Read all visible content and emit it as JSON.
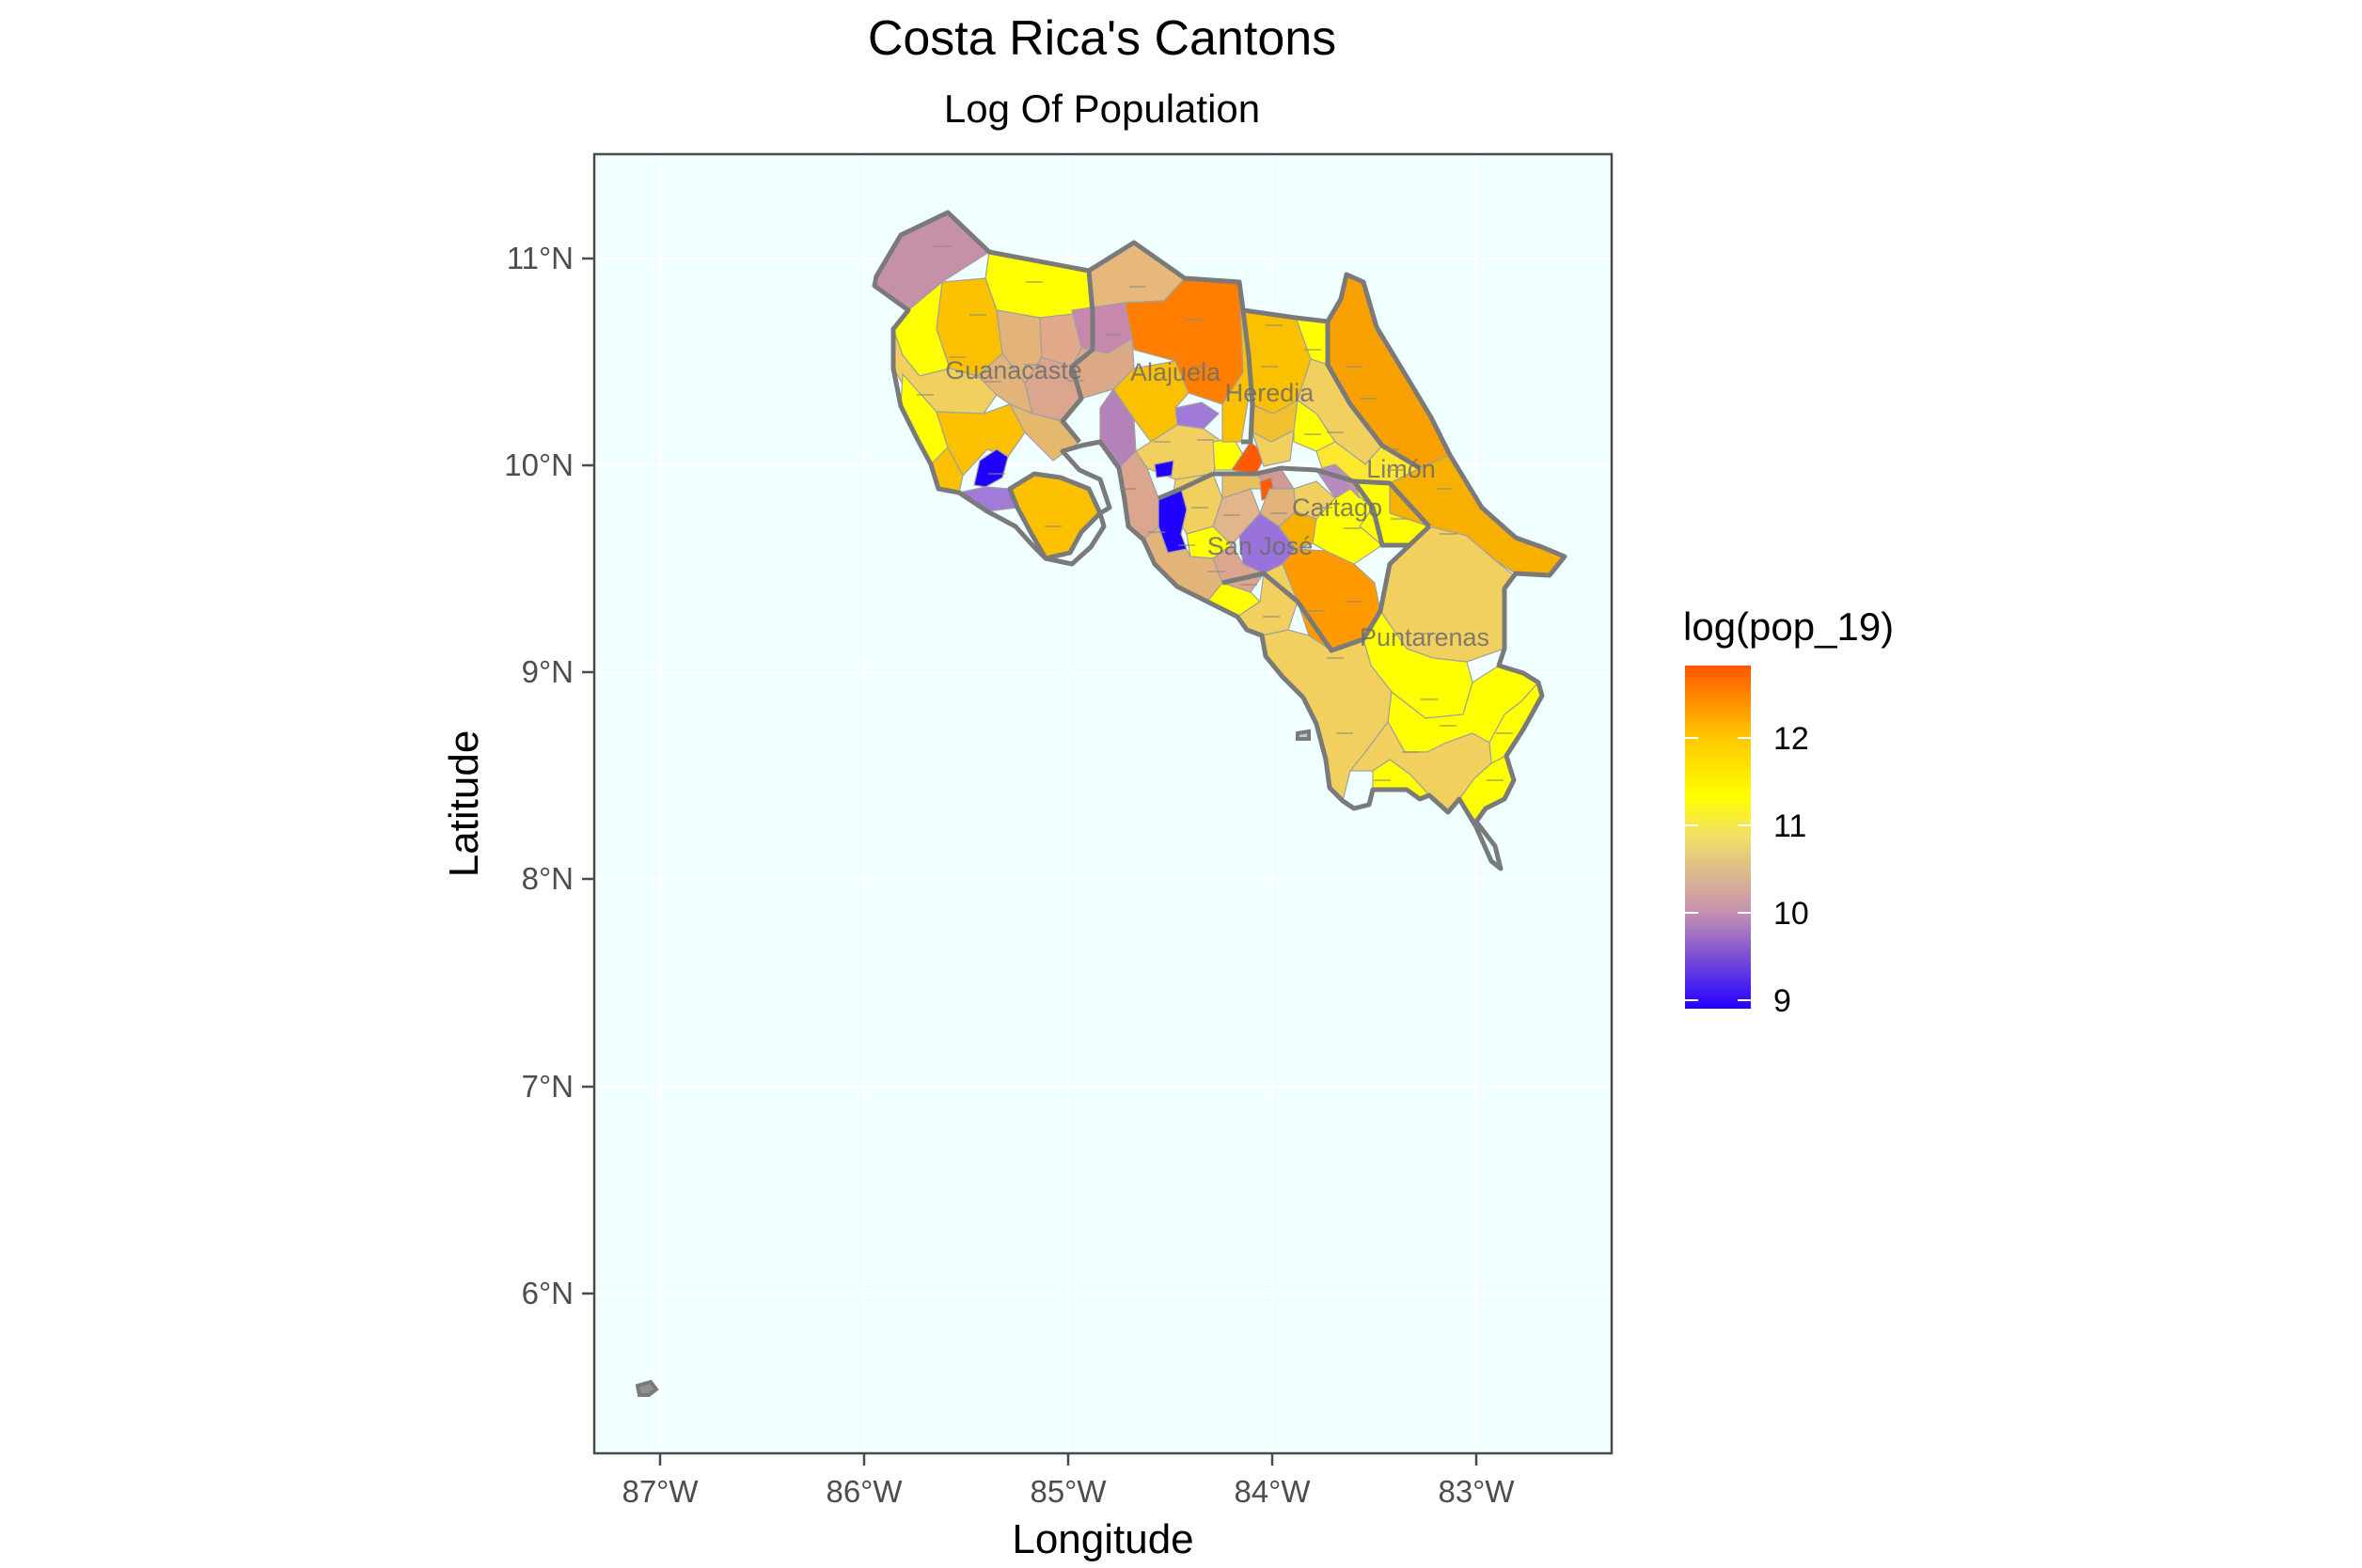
{
  "title": "Costa Rica's Cantons",
  "subtitle": "Log Of Population",
  "xlabel": "Longitude",
  "ylabel": "Latitude",
  "x_ticks": [
    "87°W",
    "86°W",
    "85°W",
    "84°W",
    "83°W"
  ],
  "y_ticks": [
    "6°N",
    "7°N",
    "8°N",
    "9°N",
    "10°N",
    "11°N"
  ],
  "provinces": [
    "Guanacaste",
    "Alajuela",
    "Heredia",
    "Limón",
    "Cartago",
    "San José",
    "Puntarenas"
  ],
  "legend": {
    "title": "log(pop_19)",
    "ticks": [
      "12",
      "11",
      "10",
      "9"
    ],
    "colors": {
      "low": "#2400ff",
      "mid_low": "#c591b1",
      "mid": "#ffff00",
      "high": "#ff5500"
    }
  },
  "colors": {
    "panel_background": "#f0ffff",
    "grid": "#ffffff",
    "border": "#4a4a4a"
  }
}
